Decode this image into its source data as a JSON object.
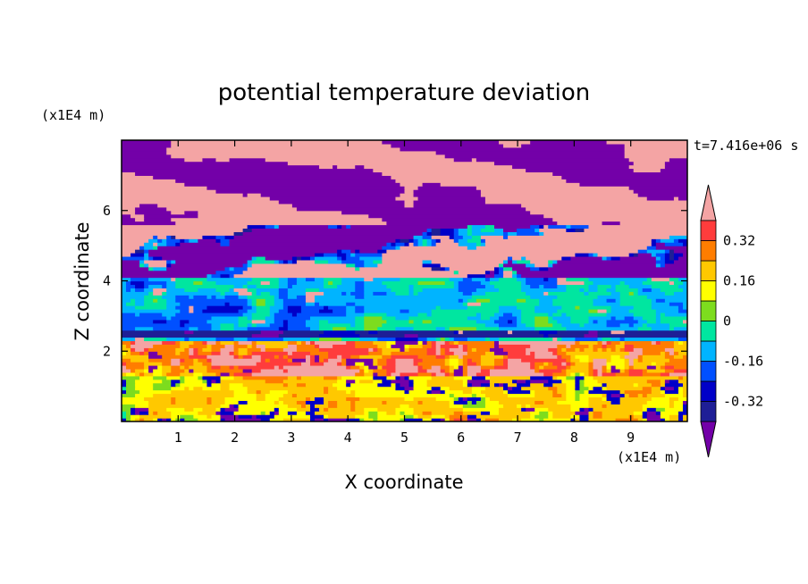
{
  "chart_data": {
    "type": "heatmap",
    "title": "potential temperature deviation",
    "xlabel": "X coordinate",
    "ylabel": "Z coordinate",
    "x_unit": "(x1E4 m)",
    "y_unit": "(x1E4 m)",
    "time_label": "t=7.416e+06 s",
    "xlim": [
      0,
      10
    ],
    "ylim": [
      0,
      8
    ],
    "x_ticks": [
      "1",
      "2",
      "3",
      "4",
      "5",
      "6",
      "7",
      "8",
      "9"
    ],
    "y_ticks": [
      "2",
      "4",
      "6"
    ],
    "colorbar": {
      "levels": [
        -0.4,
        -0.32,
        -0.24,
        -0.16,
        -0.08,
        0,
        0.08,
        0.16,
        0.24,
        0.32,
        0.4
      ],
      "tick_labels": [
        "0.32",
        "0.16",
        "0",
        "-0.16",
        "-0.32"
      ],
      "colors_low_to_high": [
        "#1e1e96",
        "#0000c8",
        "#0050ff",
        "#00b4ff",
        "#00e6a0",
        "#7ddc1e",
        "#ffff00",
        "#ffc800",
        "#ff7d00",
        "#ff3c3c"
      ],
      "under_color": "#7300a8",
      "over_color": "#f4a4a4"
    },
    "bands": [
      {
        "z_range": [
          5.6,
          8.0
        ],
        "description_colors": [
          "#f4a4a4",
          "#7300a8"
        ]
      },
      {
        "z_range": [
          4.0,
          5.6
        ],
        "description_colors": [
          "#f4a4a4",
          "#7300a8",
          "#00b4ff"
        ]
      },
      {
        "z_range": [
          2.2,
          4.0
        ],
        "description_colors": [
          "#00b4ff",
          "#00e6a0",
          "#f4a4a4"
        ]
      },
      {
        "z_range": [
          1.3,
          2.2
        ],
        "description_colors": [
          "#ff3c3c",
          "#1e1e96",
          "#f4a4a4"
        ]
      },
      {
        "z_range": [
          0.0,
          1.3
        ],
        "description_colors": [
          "#ffff00",
          "#ffc800",
          "#7300a8",
          "#00b4ff"
        ]
      }
    ]
  }
}
